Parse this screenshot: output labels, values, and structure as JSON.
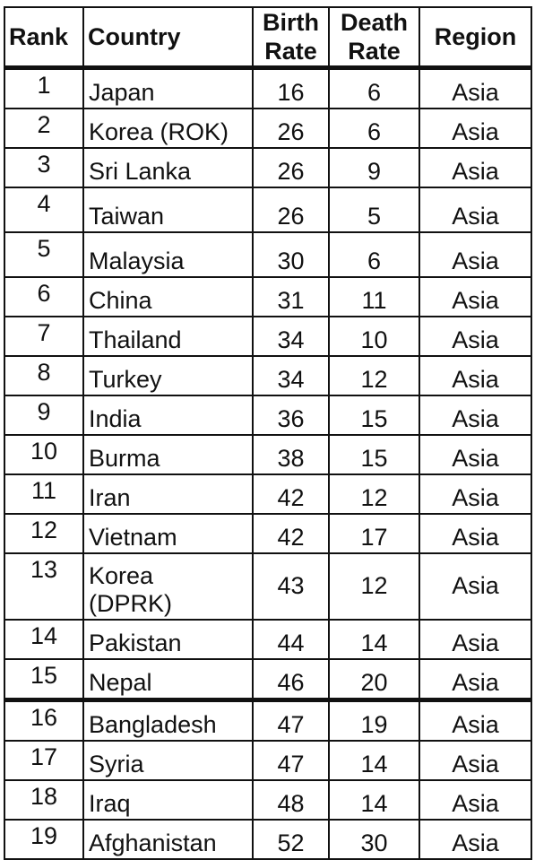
{
  "headers": {
    "rank": "Rank",
    "country": "Country",
    "birth_line1": "Birth",
    "birth_line2": "Rate",
    "death_line1": "Death",
    "death_line2": "Rate",
    "region": "Region"
  },
  "rows": [
    {
      "rank": "1",
      "country": "Japan",
      "birth_rate": "16",
      "death_rate": "6",
      "region": "Asia"
    },
    {
      "rank": "2",
      "country": "Korea (ROK)",
      "birth_rate": "26",
      "death_rate": "6",
      "region": "Asia"
    },
    {
      "rank": "3",
      "country": "Sri Lanka",
      "birth_rate": "26",
      "death_rate": "9",
      "region": "Asia"
    },
    {
      "rank": "4",
      "country": "Taiwan",
      "birth_rate": "26",
      "death_rate": "5",
      "region": "Asia"
    },
    {
      "rank": "5",
      "country": "Malaysia",
      "birth_rate": "30",
      "death_rate": "6",
      "region": "Asia"
    },
    {
      "rank": "6",
      "country": "China",
      "birth_rate": "31",
      "death_rate": "11",
      "region": "Asia"
    },
    {
      "rank": "7",
      "country": "Thailand",
      "birth_rate": "34",
      "death_rate": "10",
      "region": "Asia"
    },
    {
      "rank": "8",
      "country": "Turkey",
      "birth_rate": "34",
      "death_rate": "12",
      "region": "Asia"
    },
    {
      "rank": "9",
      "country": "India",
      "birth_rate": "36",
      "death_rate": "15",
      "region": "Asia"
    },
    {
      "rank": "10",
      "country": "Burma",
      "birth_rate": "38",
      "death_rate": "15",
      "region": "Asia"
    },
    {
      "rank": "11",
      "country": "Iran",
      "birth_rate": "42",
      "death_rate": "12",
      "region": "Asia"
    },
    {
      "rank": "12",
      "country": "Vietnam",
      "birth_rate": "42",
      "death_rate": "17",
      "region": "Asia"
    },
    {
      "rank": "13",
      "country_line1": "Korea",
      "country_line2": "(DPRK)",
      "birth_rate": "43",
      "death_rate": "12",
      "region": "Asia"
    },
    {
      "rank": "14",
      "country": "Pakistan",
      "birth_rate": "44",
      "death_rate": "14",
      "region": "Asia"
    },
    {
      "rank": "15",
      "country": "Nepal",
      "birth_rate": "46",
      "death_rate": "20",
      "region": "Asia"
    },
    {
      "rank": "16",
      "country": "Bangladesh",
      "birth_rate": "47",
      "death_rate": "19",
      "region": "Asia"
    },
    {
      "rank": "17",
      "country": "Syria",
      "birth_rate": "47",
      "death_rate": "14",
      "region": "Asia"
    },
    {
      "rank": "18",
      "country": "Iraq",
      "birth_rate": "48",
      "death_rate": "14",
      "region": "Asia"
    },
    {
      "rank": "19",
      "country": "Afghanistan",
      "birth_rate": "52",
      "death_rate": "30",
      "region": "Asia"
    }
  ]
}
